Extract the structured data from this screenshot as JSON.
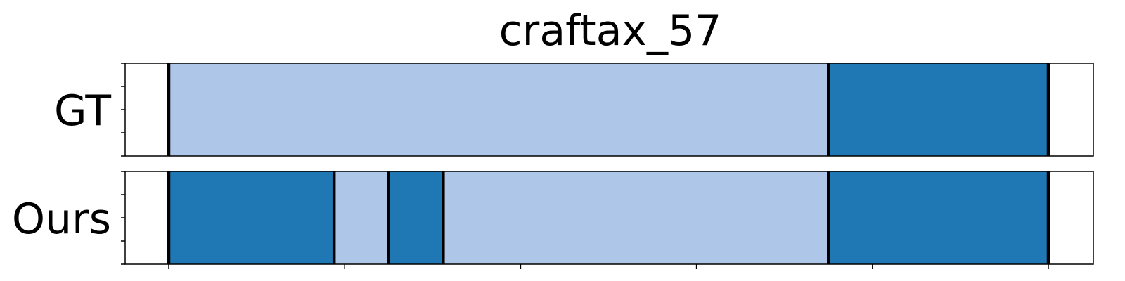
{
  "chart_data": {
    "type": "segment-timeline",
    "title": "craftax_57",
    "x_range": [
      0,
      50
    ],
    "colors": {
      "light": "#aec7e8",
      "dark": "#1f77b4",
      "boundary": "#000000",
      "frame": "#000000"
    },
    "rows": [
      {
        "label": "GT",
        "segments": [
          {
            "start": 0.0,
            "end": 37.5,
            "class": "light"
          },
          {
            "start": 37.5,
            "end": 50.0,
            "class": "dark"
          }
        ],
        "boundaries": [
          0.0,
          37.5,
          50.0
        ]
      },
      {
        "label": "Ours",
        "segments": [
          {
            "start": 0.0,
            "end": 9.4,
            "class": "dark"
          },
          {
            "start": 9.4,
            "end": 12.5,
            "class": "light"
          },
          {
            "start": 12.5,
            "end": 15.6,
            "class": "dark"
          },
          {
            "start": 15.6,
            "end": 37.5,
            "class": "light"
          },
          {
            "start": 37.5,
            "end": 50.0,
            "class": "dark"
          }
        ],
        "boundaries": [
          0.0,
          9.4,
          12.5,
          15.6,
          37.5,
          50.0
        ]
      }
    ],
    "x_ticks": [
      0,
      10,
      20,
      30,
      40,
      50
    ],
    "x_tick_labels_shown": false,
    "grid": false,
    "legend": "none"
  }
}
